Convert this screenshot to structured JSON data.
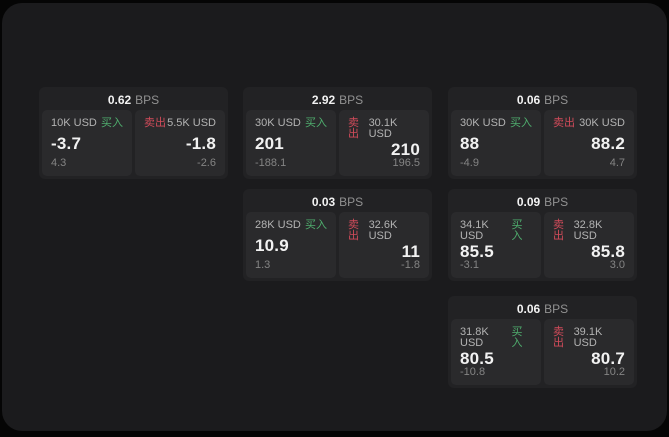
{
  "labels": {
    "buy": "买入",
    "sell": "卖出",
    "bps_suffix": "BPS"
  },
  "colors": {
    "buy_green": "#4fae6e",
    "sell_red": "#d14b5a",
    "card_bg": "#222224",
    "panel_bg": "#2a2a2c",
    "surface": "#1b1b1d",
    "value_white": "#f2f2f2",
    "muted_gray": "#848484",
    "label_gray": "#b3b3b3"
  },
  "cards": [
    {
      "bps": "0.62",
      "buy": {
        "amount": "10K USD",
        "value": "-3.7",
        "sub": "4.3"
      },
      "sell": {
        "amount": "5.5K USD",
        "value": "-1.8",
        "sub": "-2.6"
      }
    },
    {
      "bps": "2.92",
      "buy": {
        "amount": "30K USD",
        "value": "201",
        "sub": "-188.1"
      },
      "sell": {
        "amount": "30.1K USD",
        "value": "210",
        "sub": "196.5"
      }
    },
    {
      "bps": "0.06",
      "buy": {
        "amount": "30K USD",
        "value": "88",
        "sub": "-4.9"
      },
      "sell": {
        "amount": "30K USD",
        "value": "88.2",
        "sub": "4.7"
      }
    },
    {
      "bps": "0.03",
      "buy": {
        "amount": "28K USD",
        "value": "10.9",
        "sub": "1.3"
      },
      "sell": {
        "amount": "32.6K USD",
        "value": "11",
        "sub": "-1.8"
      }
    },
    {
      "bps": "0.09",
      "buy": {
        "amount": "34.1K USD",
        "value": "85.5",
        "sub": "-3.1"
      },
      "sell": {
        "amount": "32.8K USD",
        "value": "85.8",
        "sub": "3.0"
      }
    },
    {
      "bps": "0.06",
      "buy": {
        "amount": "31.8K USD",
        "value": "80.5",
        "sub": "-10.8"
      },
      "sell": {
        "amount": "39.1K USD",
        "value": "80.7",
        "sub": "10.2"
      }
    }
  ]
}
